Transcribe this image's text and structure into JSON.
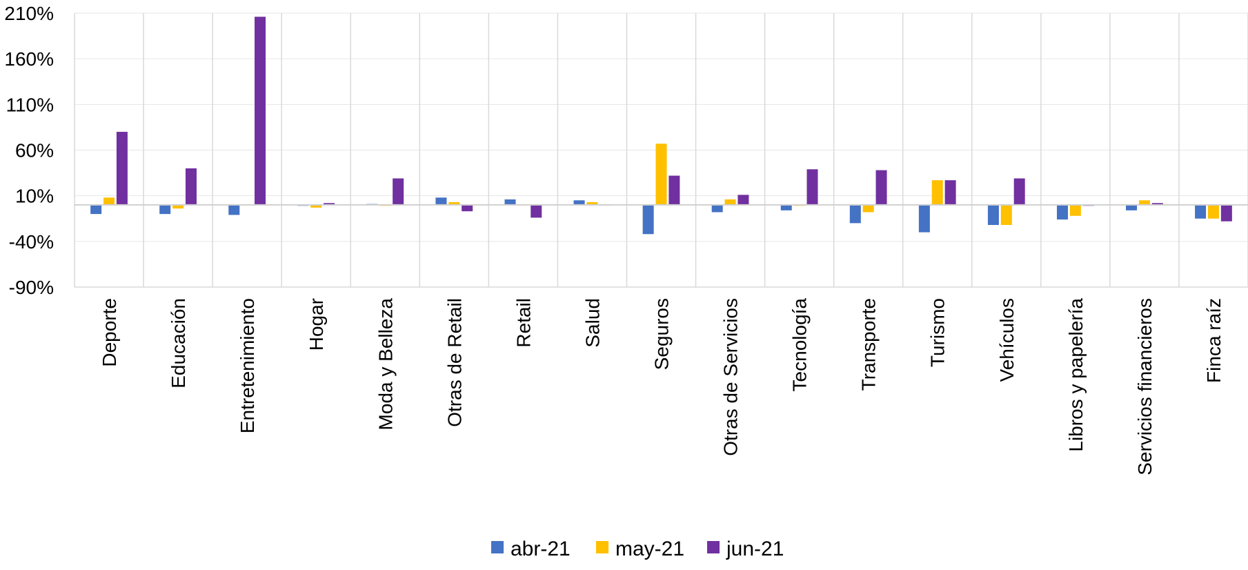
{
  "chart_data": {
    "type": "bar",
    "categories": [
      "Deporte",
      "Educación",
      "Entretenimiento",
      "Hogar",
      "Moda y Belleza",
      "Otras de Retail",
      "Retail",
      "Salud",
      "Seguros",
      "Otras de Servicios",
      "Tecnología",
      "Transporte",
      "Turismo",
      "Vehículos",
      "Libros y papelería",
      "Servicios financieros",
      "Finca raíz"
    ],
    "series": [
      {
        "name": "abr-21",
        "color": "#4472C4",
        "values": [
          -10,
          -10,
          -11,
          -1,
          1,
          8,
          6,
          5,
          -32,
          -8,
          -6,
          -20,
          -30,
          -22,
          -16,
          -6,
          -15
        ]
      },
      {
        "name": "may-21",
        "color": "#FFC000",
        "values": [
          8,
          -4,
          0,
          -3,
          -1,
          3,
          0,
          3,
          67,
          6,
          -1,
          -8,
          27,
          -22,
          -12,
          5,
          -15
        ]
      },
      {
        "name": "jun-21",
        "color": "#7030A0",
        "values": [
          80,
          40,
          206,
          2,
          29,
          -7,
          -14,
          0,
          32,
          11,
          39,
          38,
          27,
          29,
          -1,
          2,
          -18
        ]
      }
    ],
    "yticks": [
      -90,
      -40,
      10,
      60,
      110,
      160,
      210
    ],
    "ytick_labels": [
      "-90%",
      "-40%",
      "10%",
      "60%",
      "110%",
      "160%",
      "210%"
    ],
    "ylim": [
      -90,
      210
    ],
    "grid": true,
    "legend_position": "bottom"
  }
}
